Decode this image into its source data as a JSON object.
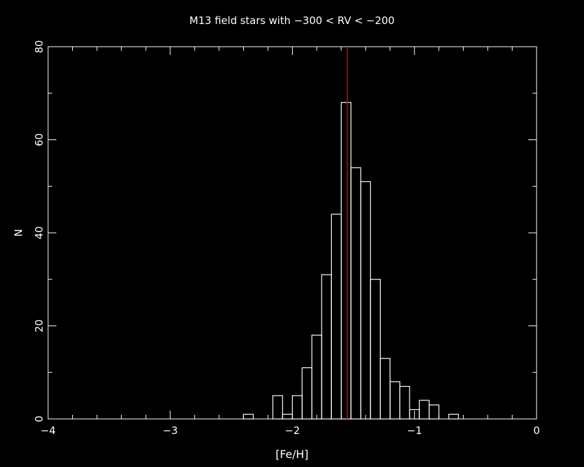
{
  "chart_data": {
    "type": "histogram",
    "title": "M13 field stars with −300 < RV < −200",
    "xlabel": "[Fe/H]",
    "ylabel": "N",
    "xlim": [
      -4,
      0
    ],
    "ylim": [
      0,
      80
    ],
    "x_ticks": [
      -4,
      -3,
      -2,
      -1,
      0
    ],
    "x_tick_labels": [
      "−4",
      "−3",
      "−2",
      "−1",
      "0"
    ],
    "y_ticks": [
      0,
      20,
      40,
      60,
      80
    ],
    "y_tick_labels": [
      "0",
      "20",
      "40",
      "60",
      "80"
    ],
    "bin_width": 0.08,
    "bins": [
      {
        "x0": -2.4,
        "x1": -2.32,
        "count": 1
      },
      {
        "x0": -2.16,
        "x1": -2.08,
        "count": 5
      },
      {
        "x0": -2.08,
        "x1": -2.0,
        "count": 1
      },
      {
        "x0": -2.0,
        "x1": -1.92,
        "count": 5
      },
      {
        "x0": -1.92,
        "x1": -1.84,
        "count": 11
      },
      {
        "x0": -1.84,
        "x1": -1.76,
        "count": 18
      },
      {
        "x0": -1.76,
        "x1": -1.68,
        "count": 31
      },
      {
        "x0": -1.68,
        "x1": -1.6,
        "count": 44
      },
      {
        "x0": -1.6,
        "x1": -1.52,
        "count": 68
      },
      {
        "x0": -1.52,
        "x1": -1.44,
        "count": 54
      },
      {
        "x0": -1.44,
        "x1": -1.36,
        "count": 51
      },
      {
        "x0": -1.36,
        "x1": -1.28,
        "count": 30
      },
      {
        "x0": -1.28,
        "x1": -1.2,
        "count": 13
      },
      {
        "x0": -1.2,
        "x1": -1.12,
        "count": 8
      },
      {
        "x0": -1.12,
        "x1": -1.04,
        "count": 7
      },
      {
        "x0": -1.04,
        "x1": -0.96,
        "count": 2
      },
      {
        "x0": -0.96,
        "x1": -0.88,
        "count": 4
      },
      {
        "x0": -0.88,
        "x1": -0.8,
        "count": 3
      },
      {
        "x0": -0.72,
        "x1": -0.64,
        "count": 1
      }
    ],
    "reference_line": {
      "x": -1.55,
      "color": "#cc0000"
    },
    "colors": {
      "background": "#000000",
      "foreground": "#ffffff"
    }
  }
}
